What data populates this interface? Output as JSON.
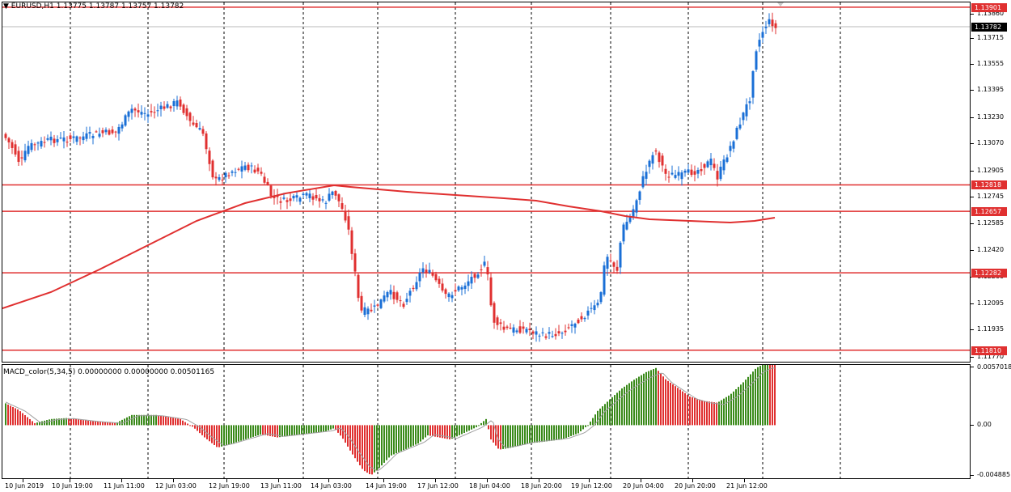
{
  "symbol": {
    "title": "EURUSD,H1",
    "quote": "1.13775 1.13787 1.13757 1.13782",
    "menu_arrow": "triangle-down-icon"
  },
  "indicator": {
    "title": "MACD_color(5,34,5) 0.00000000 0.00000000 0.00501165"
  },
  "price_axis": {
    "ticks": [
      "1.13860",
      "1.13715",
      "1.13555",
      "1.13395",
      "1.13230",
      "1.13070",
      "1.12905",
      "1.12745",
      "1.12585",
      "1.12420",
      "1.12260",
      "1.12095",
      "1.11935",
      "1.11770"
    ],
    "levels": [
      {
        "label": "1.13901",
        "color": "#e03030"
      },
      {
        "label": "1.12818",
        "color": "#e03030"
      },
      {
        "label": "1.12657",
        "color": "#e03030"
      },
      {
        "label": "1.12282",
        "color": "#e03030"
      },
      {
        "label": "1.11810",
        "color": "#e03030"
      }
    ],
    "current_price": "1.13782"
  },
  "macd_axis": {
    "ticks": [
      "0.0057018",
      "0.00",
      "-0.004885"
    ]
  },
  "time_axis": {
    "labels": [
      "10 Jun 2019",
      "10 Jun 19:00",
      "11 Jun 11:00",
      "12 Jun 03:00",
      "12 Jun 19:00",
      "13 Jun 11:00",
      "14 Jun 03:00",
      "14 Jun 19:00",
      "17 Jun 12:00",
      "18 Jun 04:00",
      "18 Jun 20:00",
      "19 Jun 12:00",
      "20 Jun 04:00",
      "20 Jun 20:00",
      "21 Jun 12:00"
    ]
  },
  "colors": {
    "bull": "#1a6fd6",
    "bear": "#e03030",
    "ma_line": "#e03030",
    "macd_up": "#3a8a1a",
    "macd_down": "#e03030",
    "signal": "#a0a0a0",
    "grid": "#000000"
  }
}
